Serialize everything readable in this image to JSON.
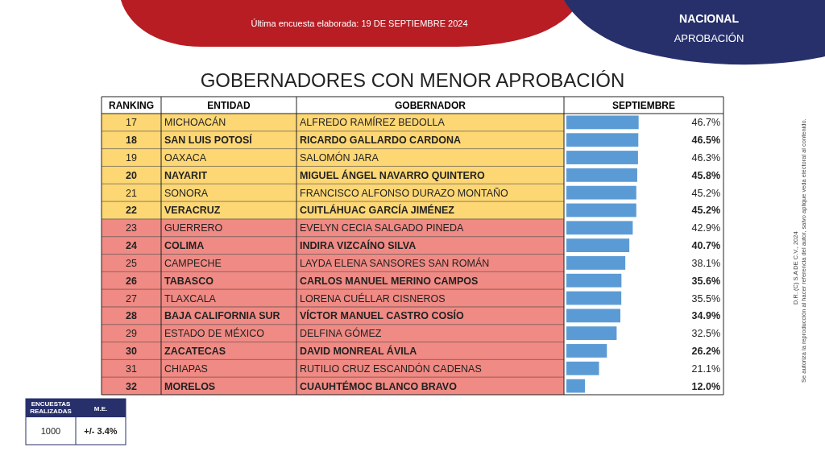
{
  "chart_data": {
    "type": "bar",
    "orientation": "horizontal",
    "title": "GOBERNADORES CON MENOR APROBACIÓN",
    "subtitle": "Última encuesta elaborada: 19 DE SEPTIEMBRE 2024",
    "xlabel": "SEPTIEMBRE",
    "ylabel": "ENTIDAD",
    "tick_labels": "y",
    "categories": [
      "MICHOACÁN",
      "SAN LUIS POTOSÍ",
      "OAXACA",
      "NAYARIT",
      "SONORA",
      "VERACRUZ",
      "GUERRERO",
      "COLIMA",
      "CAMPECHE",
      "TABASCO",
      "TLAXCALA",
      "BAJA CALIFORNIA SUR",
      "ESTADO DE MÉXICO",
      "ZACATECAS",
      "CHIAPAS",
      "MORELOS"
    ],
    "values": [
      46.7,
      46.5,
      46.3,
      45.8,
      45.2,
      45.2,
      42.9,
      40.7,
      38.1,
      35.6,
      35.5,
      34.9,
      32.5,
      26.2,
      21.1,
      12.0
    ],
    "value_labels": [
      "46.7%",
      "46.5%",
      "46.3%",
      "45.8%",
      "45.2%",
      "45.2%",
      "42.9%",
      "40.7%",
      "38.1%",
      "35.6%",
      "35.5%",
      "34.9%",
      "32.5%",
      "26.2%",
      "21.1%",
      "12.0%"
    ],
    "color": "#5b9bd5",
    "xlim": [
      0,
      100
    ],
    "annotations": [
      "RANKING",
      "GOBERNADOR",
      "NACIONAL",
      "APROBACIÓN",
      "ENCUESTAS REALIZADAS",
      "M.E.",
      "1000",
      "+/- 3.4%",
      "D.R. (C) S.A DE C.V., 2024",
      "Se autoriza la reproducción al hacer referencia del autor, salvo aplique veda electoral al contenido.",
      "17",
      "ALFREDO RAMÍREZ BEDOLLA",
      "18",
      "RICARDO GALLARDO CARDONA",
      "19",
      "SALOMÓN JARA",
      "20",
      "MIGUEL ÁNGEL NAVARRO QUINTERO",
      "21",
      "FRANCISCO ALFONSO DURAZO MONTAÑO",
      "22",
      "CUITLÁHUAC GARCÍA JIMÉNEZ",
      "23",
      "EVELYN CECIA SALGADO PINEDA",
      "24",
      "INDIRA VIZCAÍNO SILVA",
      "25",
      "LAYDA ELENA SANSORES SAN ROMÁN",
      "26",
      "CARLOS MANUEL MERINO CAMPOS",
      "27",
      "LORENA CUÉLLAR CISNEROS",
      "28",
      "VÍCTOR MANUEL CASTRO COSÍO",
      "29",
      "DELFINA GÓMEZ",
      "30",
      "DAVID MONREAL ÁVILA",
      "31",
      "RUTILIO CRUZ ESCANDÓN CADENAS",
      "32",
      "CUAUHTÉMOC BLANCO BRAVO"
    ]
  }
}
